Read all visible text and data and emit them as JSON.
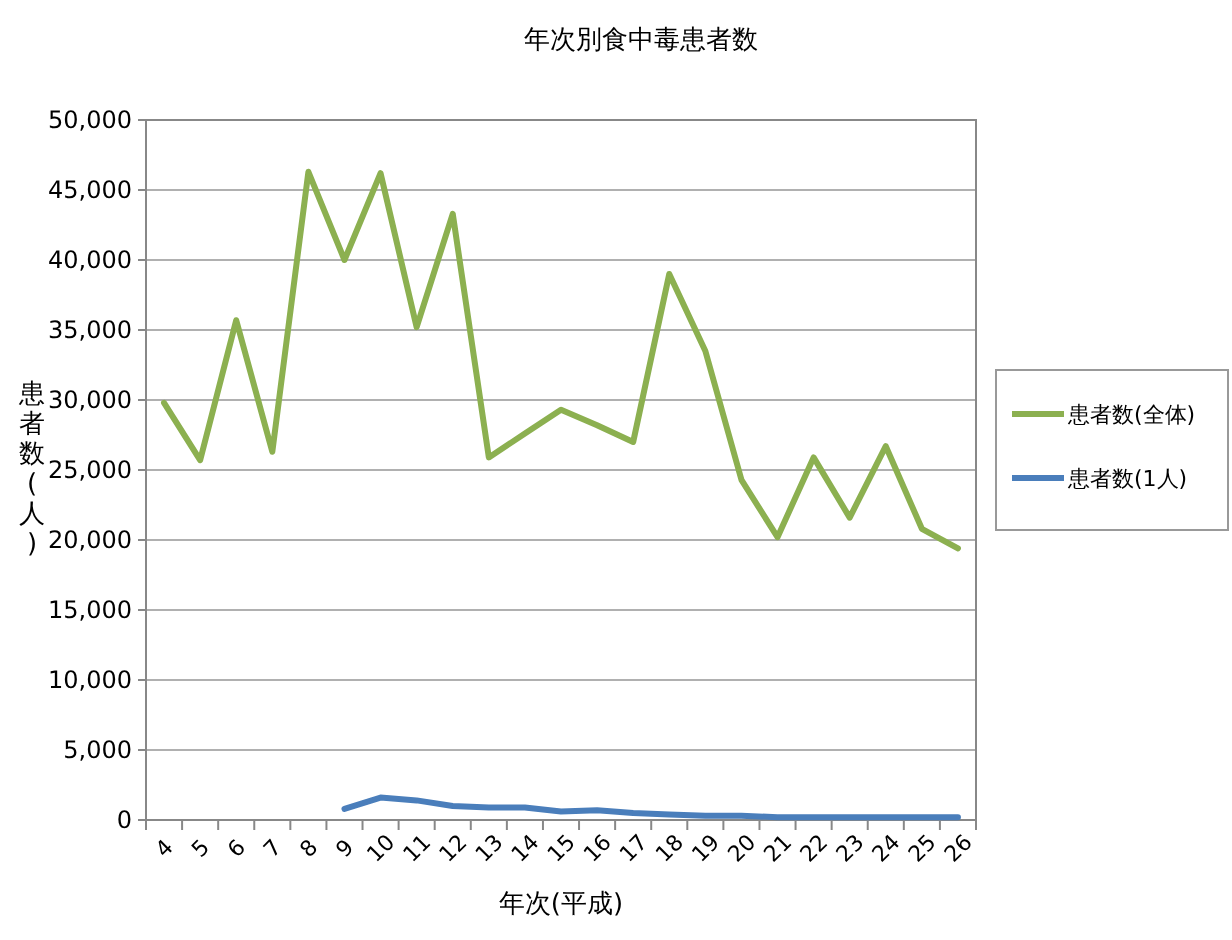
{
  "chart_data": {
    "type": "line",
    "title": "年次別食中毒患者数",
    "xlabel": "年次(平成)",
    "ylabel": "患者数(人)",
    "categories": [
      "4",
      "5",
      "6",
      "7",
      "8",
      "9",
      "10",
      "11",
      "12",
      "13",
      "14",
      "15",
      "16",
      "17",
      "18",
      "19",
      "20",
      "21",
      "22",
      "23",
      "24",
      "25",
      "26"
    ],
    "series": [
      {
        "name": "患者数(全体)",
        "color": "#8cb050",
        "values": [
          29800,
          25700,
          35700,
          26300,
          46300,
          40000,
          46200,
          35200,
          43300,
          25900,
          27600,
          29300,
          28200,
          27000,
          39000,
          33500,
          24300,
          20200,
          25900,
          21600,
          26700,
          20800,
          19400
        ]
      },
      {
        "name": "患者数(1人)",
        "color": "#4a7ebb",
        "values": [
          null,
          null,
          null,
          null,
          null,
          800,
          1600,
          1400,
          1000,
          900,
          900,
          600,
          700,
          500,
          400,
          300,
          300,
          200,
          200,
          200,
          200,
          200,
          200
        ]
      }
    ],
    "ylim": [
      0,
      50000
    ],
    "yticks": [
      {
        "value": 0,
        "label": "0"
      },
      {
        "value": 5000,
        "label": "5,000"
      },
      {
        "value": 10000,
        "label": "10,000"
      },
      {
        "value": 15000,
        "label": "15,000"
      },
      {
        "value": 20000,
        "label": "20,000"
      },
      {
        "value": 25000,
        "label": "25,000"
      },
      {
        "value": 30000,
        "label": "30,000"
      },
      {
        "value": 35000,
        "label": "35,000"
      },
      {
        "value": 40000,
        "label": "40,000"
      },
      {
        "value": 45000,
        "label": "45,000"
      },
      {
        "value": 50000,
        "label": "50,000"
      }
    ],
    "grid": "y",
    "legend": "right",
    "marker": "none",
    "line_style": "solid"
  }
}
